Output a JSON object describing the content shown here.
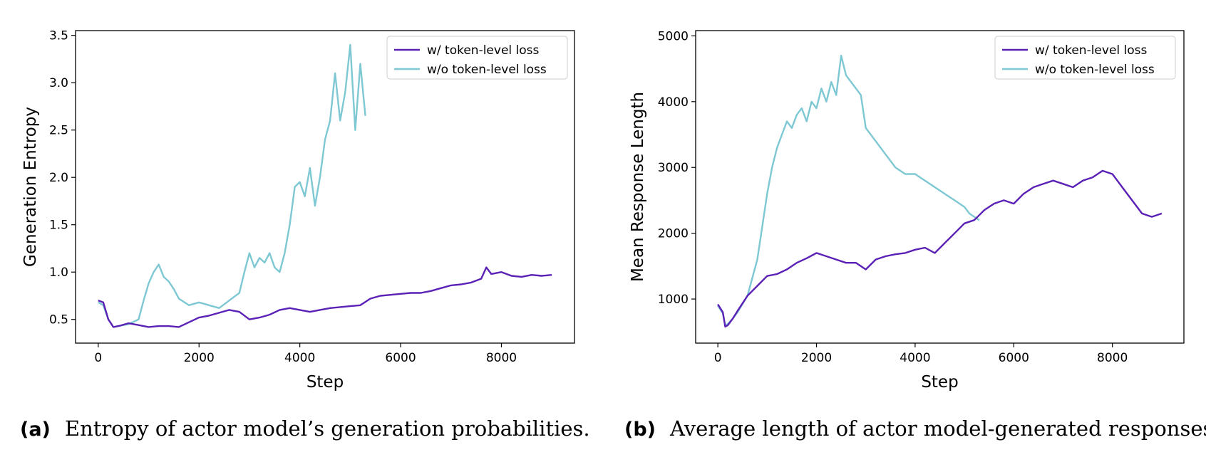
{
  "chart_data": [
    {
      "type": "line",
      "title": "",
      "xlabel": "Step",
      "ylabel": "Generation Entropy",
      "xlim": [
        -450,
        9450
      ],
      "ylim": [
        0.25,
        3.55
      ],
      "xticks": [
        0,
        2000,
        4000,
        6000,
        8000
      ],
      "xtick_labels": [
        "0",
        "2000",
        "4000",
        "6000",
        "8000"
      ],
      "yticks": [
        0.5,
        1.0,
        1.5,
        2.0,
        2.5,
        3.0,
        3.5
      ],
      "ytick_labels": [
        "0.5",
        "1.0",
        "1.5",
        "2.0",
        "2.5",
        "3.0",
        "3.5"
      ],
      "grid": false,
      "legend_position": "top-right",
      "series": [
        {
          "name": "w/ token-level loss",
          "color": "#5b21b6",
          "x": [
            0,
            100,
            200,
            300,
            400,
            600,
            800,
            1000,
            1200,
            1400,
            1600,
            1800,
            2000,
            2200,
            2400,
            2600,
            2800,
            3000,
            3200,
            3400,
            3600,
            3800,
            4000,
            4200,
            4400,
            4600,
            4800,
            5000,
            5200,
            5400,
            5600,
            5800,
            6000,
            6200,
            6400,
            6600,
            6800,
            7000,
            7200,
            7400,
            7600,
            7700,
            7800,
            8000,
            8200,
            8400,
            8600,
            8800,
            9000
          ],
          "y": [
            0.7,
            0.68,
            0.5,
            0.42,
            0.43,
            0.46,
            0.44,
            0.42,
            0.43,
            0.43,
            0.42,
            0.47,
            0.52,
            0.54,
            0.57,
            0.6,
            0.58,
            0.5,
            0.52,
            0.55,
            0.6,
            0.62,
            0.6,
            0.58,
            0.6,
            0.62,
            0.63,
            0.64,
            0.65,
            0.72,
            0.75,
            0.76,
            0.77,
            0.78,
            0.78,
            0.8,
            0.83,
            0.86,
            0.87,
            0.89,
            0.93,
            1.05,
            0.98,
            1.0,
            0.96,
            0.95,
            0.97,
            0.96,
            0.97
          ]
        },
        {
          "name": "w/o token-level loss",
          "color": "#7ec8d3",
          "x": [
            0,
            100,
            200,
            300,
            400,
            600,
            800,
            900,
            1000,
            1100,
            1200,
            1300,
            1400,
            1500,
            1600,
            1800,
            2000,
            2200,
            2400,
            2600,
            2800,
            2900,
            3000,
            3100,
            3200,
            3300,
            3400,
            3500,
            3600,
            3700,
            3800,
            3900,
            4000,
            4100,
            4200,
            4300,
            4400,
            4500,
            4600,
            4700,
            4800,
            4900,
            5000,
            5100,
            5200,
            5300
          ],
          "y": [
            0.68,
            0.65,
            0.5,
            0.42,
            0.43,
            0.45,
            0.5,
            0.7,
            0.88,
            1.0,
            1.08,
            0.95,
            0.9,
            0.82,
            0.72,
            0.65,
            0.68,
            0.65,
            0.62,
            0.7,
            0.78,
            1.0,
            1.2,
            1.05,
            1.15,
            1.1,
            1.2,
            1.05,
            1.0,
            1.2,
            1.5,
            1.9,
            1.95,
            1.8,
            2.1,
            1.7,
            2.0,
            2.4,
            2.6,
            3.1,
            2.6,
            2.9,
            3.4,
            2.5,
            3.2,
            2.65
          ]
        }
      ]
    },
    {
      "type": "line",
      "title": "",
      "xlabel": "Step",
      "ylabel": "Mean Response Length",
      "xlim": [
        -450,
        9450
      ],
      "ylim": [
        330,
        5080
      ],
      "xticks": [
        0,
        2000,
        4000,
        6000,
        8000
      ],
      "xtick_labels": [
        "0",
        "2000",
        "4000",
        "6000",
        "8000"
      ],
      "yticks": [
        1000,
        2000,
        3000,
        4000,
        5000
      ],
      "ytick_labels": [
        "1000",
        "2000",
        "3000",
        "4000",
        "5000"
      ],
      "grid": false,
      "legend_position": "top-right",
      "series": [
        {
          "name": "w/ token-level loss",
          "color": "#5b21b6",
          "x": [
            0,
            100,
            150,
            200,
            300,
            400,
            600,
            800,
            1000,
            1200,
            1400,
            1600,
            1800,
            2000,
            2200,
            2400,
            2600,
            2800,
            3000,
            3200,
            3400,
            3600,
            3800,
            4000,
            4200,
            4400,
            4600,
            4800,
            5000,
            5200,
            5400,
            5600,
            5800,
            6000,
            6200,
            6400,
            6600,
            6800,
            7000,
            7200,
            7400,
            7600,
            7800,
            8000,
            8200,
            8400,
            8600,
            8800,
            9000
          ],
          "y": [
            920,
            800,
            580,
            600,
            700,
            820,
            1050,
            1200,
            1350,
            1380,
            1450,
            1550,
            1620,
            1700,
            1650,
            1600,
            1550,
            1550,
            1450,
            1600,
            1650,
            1680,
            1700,
            1750,
            1780,
            1700,
            1850,
            2000,
            2150,
            2200,
            2350,
            2450,
            2500,
            2450,
            2600,
            2700,
            2750,
            2800,
            2750,
            2700,
            2800,
            2850,
            2950,
            2900,
            2700,
            2500,
            2300,
            2250,
            2300
          ]
        },
        {
          "name": "w/o token-level loss",
          "color": "#7ec8d3",
          "x": [
            0,
            100,
            150,
            200,
            300,
            400,
            600,
            800,
            900,
            1000,
            1100,
            1200,
            1300,
            1400,
            1500,
            1600,
            1700,
            1800,
            1900,
            2000,
            2100,
            2200,
            2300,
            2400,
            2500,
            2600,
            2700,
            2800,
            2900,
            3000,
            3200,
            3400,
            3600,
            3800,
            4000,
            4200,
            4400,
            4600,
            4800,
            5000,
            5100,
            5200,
            5300
          ],
          "y": [
            900,
            780,
            600,
            620,
            700,
            800,
            1050,
            1600,
            2100,
            2600,
            3000,
            3300,
            3500,
            3700,
            3600,
            3800,
            3900,
            3700,
            4000,
            3900,
            4200,
            4000,
            4300,
            4100,
            4700,
            4400,
            4300,
            4200,
            4100,
            3600,
            3400,
            3200,
            3000,
            2900,
            2900,
            2800,
            2700,
            2600,
            2500,
            2400,
            2300,
            2250,
            2200
          ]
        }
      ]
    }
  ],
  "captions": {
    "a": {
      "label": "(a)",
      "text": "Entropy of actor model’s generation probabilities."
    },
    "b": {
      "label": "(b)",
      "text": "Average length of actor model-generated responses"
    }
  }
}
